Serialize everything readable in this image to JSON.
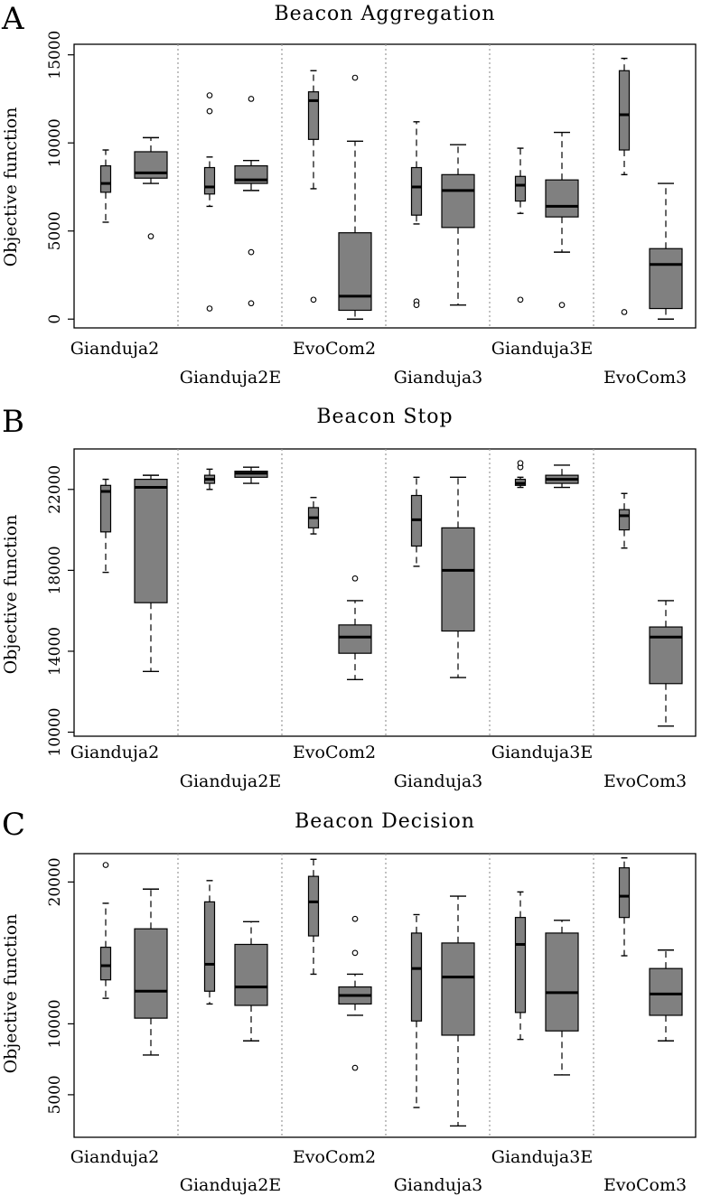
{
  "figure": {
    "group_labels": [
      "Gianduja2",
      "Gianduja2E",
      "EvoCom2",
      "Gianduja3",
      "Gianduja3E",
      "EvoCom3"
    ],
    "box_fill": "#808080",
    "separator_color": "#9a9a9a"
  },
  "chart_data": [
    {
      "panel": "A",
      "type": "boxplot",
      "title": "Beacon Aggregation",
      "ylabel": "Objective function",
      "ylim": [
        -500,
        15600
      ],
      "yticks": [
        0,
        5000,
        10000,
        15000
      ],
      "ytick_labels": [
        "0",
        "5000",
        "10000",
        "15000"
      ],
      "boxes": [
        {
          "group": "Gianduja2",
          "whisker_low": 5500,
          "q1": 7200,
          "median": 7700,
          "q3": 8700,
          "whisker_high": 9600,
          "outliers": []
        },
        {
          "group": "Gianduja2",
          "whisker_low": 7700,
          "q1": 8000,
          "median": 8300,
          "q3": 9500,
          "whisker_high": 10300,
          "outliers": [
            4700
          ]
        },
        {
          "group": "Gianduja2E",
          "whisker_low": 6400,
          "q1": 7100,
          "median": 7500,
          "q3": 8600,
          "whisker_high": 9200,
          "outliers": [
            12700,
            11800,
            600
          ]
        },
        {
          "group": "Gianduja2E",
          "whisker_low": 7300,
          "q1": 7700,
          "median": 7900,
          "q3": 8700,
          "whisker_high": 9000,
          "outliers": [
            12500,
            3800,
            900
          ]
        },
        {
          "group": "EvoCom2",
          "whisker_low": 7400,
          "q1": 10200,
          "median": 12400,
          "q3": 12900,
          "whisker_high": 14100,
          "outliers": [
            1100
          ]
        },
        {
          "group": "EvoCom2",
          "whisker_low": 0,
          "q1": 500,
          "median": 1300,
          "q3": 4900,
          "whisker_high": 10100,
          "outliers": [
            13700
          ]
        },
        {
          "group": "Gianduja3",
          "whisker_low": 5400,
          "q1": 5900,
          "median": 7500,
          "q3": 8600,
          "whisker_high": 11200,
          "outliers": [
            1000,
            800
          ]
        },
        {
          "group": "Gianduja3",
          "whisker_low": 800,
          "q1": 5200,
          "median": 7300,
          "q3": 8200,
          "whisker_high": 9900,
          "outliers": []
        },
        {
          "group": "Gianduja3E",
          "whisker_low": 6000,
          "q1": 6700,
          "median": 7600,
          "q3": 8100,
          "whisker_high": 9700,
          "outliers": [
            1100
          ]
        },
        {
          "group": "Gianduja3E",
          "whisker_low": 3800,
          "q1": 5800,
          "median": 6400,
          "q3": 7900,
          "whisker_high": 10600,
          "outliers": [
            800
          ]
        },
        {
          "group": "EvoCom3",
          "whisker_low": 8200,
          "q1": 9600,
          "median": 11600,
          "q3": 14100,
          "whisker_high": 14800,
          "outliers": [
            400
          ]
        },
        {
          "group": "EvoCom3",
          "whisker_low": 0,
          "q1": 600,
          "median": 3100,
          "q3": 4000,
          "whisker_high": 7700,
          "outliers": []
        }
      ]
    },
    {
      "panel": "B",
      "type": "boxplot",
      "title": "Beacon Stop",
      "ylabel": "Objective function",
      "ylim": [
        9800,
        24000
      ],
      "yticks": [
        10000,
        14000,
        18000,
        22000
      ],
      "ytick_labels": [
        "10000",
        "14000",
        "18000",
        "22000"
      ],
      "boxes": [
        {
          "group": "Gianduja2",
          "whisker_low": 17900,
          "q1": 19900,
          "median": 21900,
          "q3": 22200,
          "whisker_high": 22500,
          "outliers": []
        },
        {
          "group": "Gianduja2",
          "whisker_low": 13000,
          "q1": 16400,
          "median": 22100,
          "q3": 22500,
          "whisker_high": 22700,
          "outliers": []
        },
        {
          "group": "Gianduja2E",
          "whisker_low": 22000,
          "q1": 22300,
          "median": 22500,
          "q3": 22700,
          "whisker_high": 23000,
          "outliers": []
        },
        {
          "group": "Gianduja2E",
          "whisker_low": 22300,
          "q1": 22600,
          "median": 22800,
          "q3": 22900,
          "whisker_high": 23100,
          "outliers": []
        },
        {
          "group": "EvoCom2",
          "whisker_low": 19800,
          "q1": 20100,
          "median": 20600,
          "q3": 21100,
          "whisker_high": 21600,
          "outliers": []
        },
        {
          "group": "EvoCom2",
          "whisker_low": 12600,
          "q1": 13900,
          "median": 14700,
          "q3": 15300,
          "whisker_high": 16500,
          "outliers": [
            17600
          ]
        },
        {
          "group": "Gianduja3",
          "whisker_low": 18200,
          "q1": 19200,
          "median": 20500,
          "q3": 21700,
          "whisker_high": 22600,
          "outliers": []
        },
        {
          "group": "Gianduja3",
          "whisker_low": 12700,
          "q1": 15000,
          "median": 18000,
          "q3": 20100,
          "whisker_high": 22600,
          "outliers": []
        },
        {
          "group": "Gianduja3E",
          "whisker_low": 22100,
          "q1": 22200,
          "median": 22300,
          "q3": 22500,
          "whisker_high": 22600,
          "outliers": [
            23100,
            23300
          ]
        },
        {
          "group": "Gianduja3E",
          "whisker_low": 22100,
          "q1": 22300,
          "median": 22500,
          "q3": 22700,
          "whisker_high": 23200,
          "outliers": []
        },
        {
          "group": "EvoCom3",
          "whisker_low": 19100,
          "q1": 20000,
          "median": 20700,
          "q3": 21000,
          "whisker_high": 21800,
          "outliers": []
        },
        {
          "group": "EvoCom3",
          "whisker_low": 10300,
          "q1": 12400,
          "median": 14700,
          "q3": 15200,
          "whisker_high": 16500,
          "outliers": []
        }
      ]
    },
    {
      "panel": "C",
      "type": "boxplot",
      "title": "Beacon Decision",
      "ylabel": "Objective function",
      "ylim": [
        2000,
        22000
      ],
      "yticks": [
        5000,
        10000,
        20000
      ],
      "ytick_labels": [
        "5000",
        "10000",
        "20000"
      ],
      "boxes": [
        {
          "group": "Gianduja2",
          "whisker_low": 11800,
          "q1": 13100,
          "median": 14100,
          "q3": 15400,
          "whisker_high": 18500,
          "outliers": [
            21200
          ]
        },
        {
          "group": "Gianduja2",
          "whisker_low": 7800,
          "q1": 10400,
          "median": 12300,
          "q3": 16700,
          "whisker_high": 19500,
          "outliers": []
        },
        {
          "group": "Gianduja2E",
          "whisker_low": 11400,
          "q1": 12300,
          "median": 14200,
          "q3": 18600,
          "whisker_high": 20100,
          "outliers": []
        },
        {
          "group": "Gianduja2E",
          "whisker_low": 8800,
          "q1": 11300,
          "median": 12600,
          "q3": 15600,
          "whisker_high": 17200,
          "outliers": []
        },
        {
          "group": "EvoCom2",
          "whisker_low": 13500,
          "q1": 16200,
          "median": 18600,
          "q3": 20400,
          "whisker_high": 21600,
          "outliers": []
        },
        {
          "group": "EvoCom2",
          "whisker_low": 10600,
          "q1": 11400,
          "median": 12000,
          "q3": 12600,
          "whisker_high": 13500,
          "outliers": [
            17400,
            15000,
            6900
          ]
        },
        {
          "group": "Gianduja3",
          "whisker_low": 4100,
          "q1": 10200,
          "median": 13900,
          "q3": 16400,
          "whisker_high": 17700,
          "outliers": []
        },
        {
          "group": "Gianduja3",
          "whisker_low": 2800,
          "q1": 9200,
          "median": 13300,
          "q3": 15700,
          "whisker_high": 19000,
          "outliers": []
        },
        {
          "group": "Gianduja3E",
          "whisker_low": 8900,
          "q1": 10800,
          "median": 15600,
          "q3": 17500,
          "whisker_high": 19300,
          "outliers": []
        },
        {
          "group": "Gianduja3E",
          "whisker_low": 6400,
          "q1": 9500,
          "median": 12200,
          "q3": 16400,
          "whisker_high": 17300,
          "outliers": []
        },
        {
          "group": "EvoCom3",
          "whisker_low": 14800,
          "q1": 17500,
          "median": 19000,
          "q3": 21000,
          "whisker_high": 21700,
          "outliers": []
        },
        {
          "group": "EvoCom3",
          "whisker_low": 8800,
          "q1": 10600,
          "median": 12100,
          "q3": 13900,
          "whisker_high": 15200,
          "outliers": []
        }
      ]
    }
  ]
}
